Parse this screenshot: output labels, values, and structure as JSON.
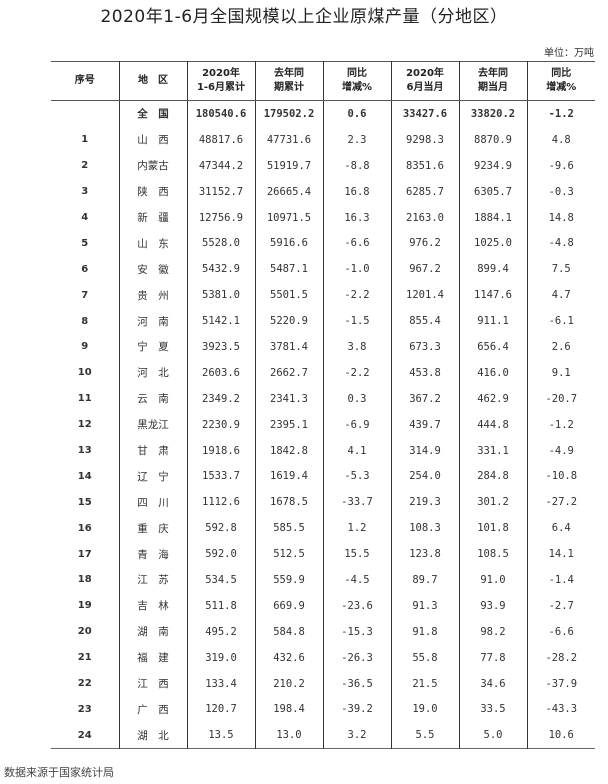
{
  "title": "2020年1-6月全国规模以上企业原煤产量（分地区）",
  "unit": "单位：万吨",
  "headers": [
    [
      "序号",
      ""
    ],
    [
      "地　区",
      ""
    ],
    [
      "2020年",
      "1-6月累计"
    ],
    [
      "去年同",
      "期累计"
    ],
    [
      "同比",
      "增减%"
    ],
    [
      "2020年",
      "6月当月"
    ],
    [
      "去年同",
      "期当月"
    ],
    [
      "同比",
      "增减%"
    ]
  ],
  "rows": [
    [
      "",
      "全　国",
      "180540.6",
      "179502.2",
      "0.6",
      "33427.6",
      "33820.2",
      "-1.2"
    ],
    [
      "1",
      "山　西",
      "48817.6",
      "47731.6",
      "2.3",
      "9298.3",
      "8870.9",
      "4.8"
    ],
    [
      "2",
      "内蒙古",
      "47344.2",
      "51919.7",
      "-8.8",
      "8351.6",
      "9234.9",
      "-9.6"
    ],
    [
      "3",
      "陕　西",
      "31152.7",
      "26665.4",
      "16.8",
      "6285.7",
      "6305.7",
      "-0.3"
    ],
    [
      "4",
      "新　疆",
      "12756.9",
      "10971.5",
      "16.3",
      "2163.0",
      "1884.1",
      "14.8"
    ],
    [
      "5",
      "山　东",
      "5528.0",
      "5916.6",
      "-6.6",
      "976.2",
      "1025.0",
      "-4.8"
    ],
    [
      "6",
      "安　徽",
      "5432.9",
      "5487.1",
      "-1.0",
      "967.2",
      "899.4",
      "7.5"
    ],
    [
      "7",
      "贵　州",
      "5381.0",
      "5501.5",
      "-2.2",
      "1201.4",
      "1147.6",
      "4.7"
    ],
    [
      "8",
      "河　南",
      "5142.1",
      "5220.9",
      "-1.5",
      "855.4",
      "911.1",
      "-6.1"
    ],
    [
      "9",
      "宁　夏",
      "3923.5",
      "3781.4",
      "3.8",
      "673.3",
      "656.4",
      "2.6"
    ],
    [
      "10",
      "河　北",
      "2603.6",
      "2662.7",
      "-2.2",
      "453.8",
      "416.0",
      "9.1"
    ],
    [
      "11",
      "云　南",
      "2349.2",
      "2341.3",
      "0.3",
      "367.2",
      "462.9",
      "-20.7"
    ],
    [
      "12",
      "黑龙江",
      "2230.9",
      "2395.1",
      "-6.9",
      "439.7",
      "444.8",
      "-1.2"
    ],
    [
      "13",
      "甘　肃",
      "1918.6",
      "1842.8",
      "4.1",
      "314.9",
      "331.1",
      "-4.9"
    ],
    [
      "14",
      "辽　宁",
      "1533.7",
      "1619.4",
      "-5.3",
      "254.0",
      "284.8",
      "-10.8"
    ],
    [
      "15",
      "四　川",
      "1112.6",
      "1678.5",
      "-33.7",
      "219.3",
      "301.2",
      "-27.2"
    ],
    [
      "16",
      "重　庆",
      "592.8",
      "585.5",
      "1.2",
      "108.3",
      "101.8",
      "6.4"
    ],
    [
      "17",
      "青　海",
      "592.0",
      "512.5",
      "15.5",
      "123.8",
      "108.5",
      "14.1"
    ],
    [
      "18",
      "江　苏",
      "534.5",
      "559.9",
      "-4.5",
      "89.7",
      "91.0",
      "-1.4"
    ],
    [
      "19",
      "吉　林",
      "511.8",
      "669.9",
      "-23.6",
      "91.3",
      "93.9",
      "-2.7"
    ],
    [
      "20",
      "湖　南",
      "495.2",
      "584.8",
      "-15.3",
      "91.8",
      "98.2",
      "-6.6"
    ],
    [
      "21",
      "福　建",
      "319.0",
      "432.6",
      "-26.3",
      "55.8",
      "77.8",
      "-28.2"
    ],
    [
      "22",
      "江　西",
      "133.4",
      "210.2",
      "-36.5",
      "21.5",
      "34.6",
      "-37.9"
    ],
    [
      "23",
      "广　西",
      "120.7",
      "198.4",
      "-39.2",
      "19.0",
      "33.5",
      "-43.3"
    ],
    [
      "24",
      "湖　北",
      "13.5",
      "13.0",
      "3.2",
      "5.5",
      "5.0",
      "10.6"
    ]
  ],
  "footer": "数据来源于国家统计局"
}
